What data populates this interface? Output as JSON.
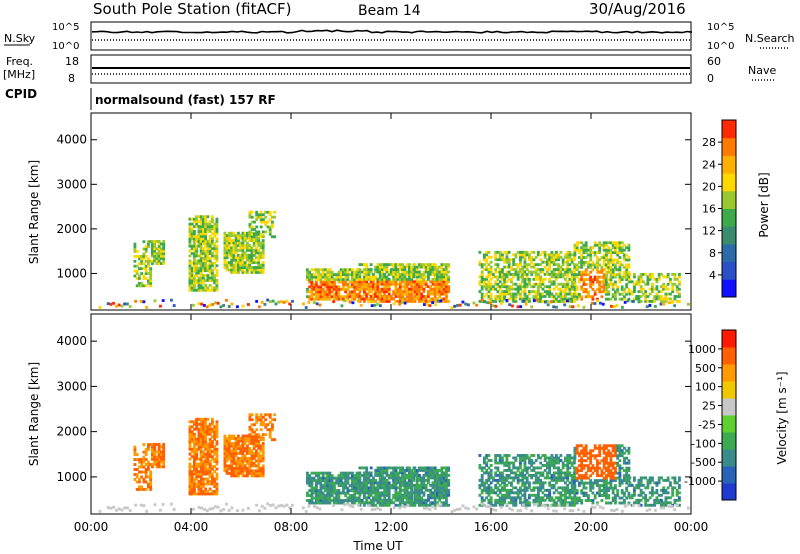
{
  "header": {
    "station": "South Pole Station (fitACF)",
    "beam": "Beam 14",
    "date": "30/Aug/2016"
  },
  "status_panels": {
    "nsky_label": "N.Sky",
    "nsky_top": "10^5",
    "nsky_bottom": "10^0",
    "nsearch_label": "N.Search",
    "nsearch_top": "10^5",
    "nsearch_bottom": "10^0",
    "freq_label_1": "Freq.",
    "freq_label_2": "[MHz]",
    "freq_top": "18",
    "freq_bottom": "8",
    "nave_label": "Nave",
    "nave_top": "60",
    "nave_bottom": "0",
    "cpid_label": "CPID",
    "cpid_text": "normalsound (fast) 157 RF"
  },
  "chart_data": [
    {
      "type": "heatmap",
      "name": "power",
      "ylabel": "Slant Range [km]",
      "xlabel": "",
      "x_ticks": [
        "00:00",
        "04:00",
        "08:00",
        "12:00",
        "16:00",
        "20:00",
        "00:00"
      ],
      "y_ticks": [
        "1000",
        "2000",
        "3000",
        "4000"
      ],
      "ylim": [
        180,
        4600
      ],
      "colorbar": {
        "label": "Power [dB]",
        "ticks": [
          "4",
          "8",
          "12",
          "16",
          "20",
          "24",
          "28"
        ],
        "colors": [
          "#1010ff",
          "#2850c8",
          "#2d6aa8",
          "#3a8c6e",
          "#3caa4a",
          "#9ac830",
          "#ffd800",
          "#ffb000",
          "#ff7a00",
          "#ff2a00"
        ]
      }
    },
    {
      "type": "heatmap",
      "name": "velocity",
      "ylabel": "Slant Range [km]",
      "xlabel": "Time UT",
      "x_ticks": [
        "00:00",
        "04:00",
        "08:00",
        "12:00",
        "16:00",
        "20:00",
        "00:00"
      ],
      "y_ticks": [
        "1000",
        "2000",
        "3000",
        "4000"
      ],
      "ylim": [
        180,
        4600
      ],
      "colorbar": {
        "label": "Velocity [m s⁻¹]",
        "ticks": [
          "1000",
          "500",
          "100",
          "25",
          "-25",
          "-100",
          "-500",
          "-1000"
        ],
        "colors": [
          "#1e3ad0",
          "#2a64b8",
          "#3a8c8a",
          "#3caa50",
          "#5ed030",
          "#c8c8c8",
          "#f0c800",
          "#ff9a00",
          "#ff6000",
          "#ff1a00"
        ]
      }
    }
  ]
}
